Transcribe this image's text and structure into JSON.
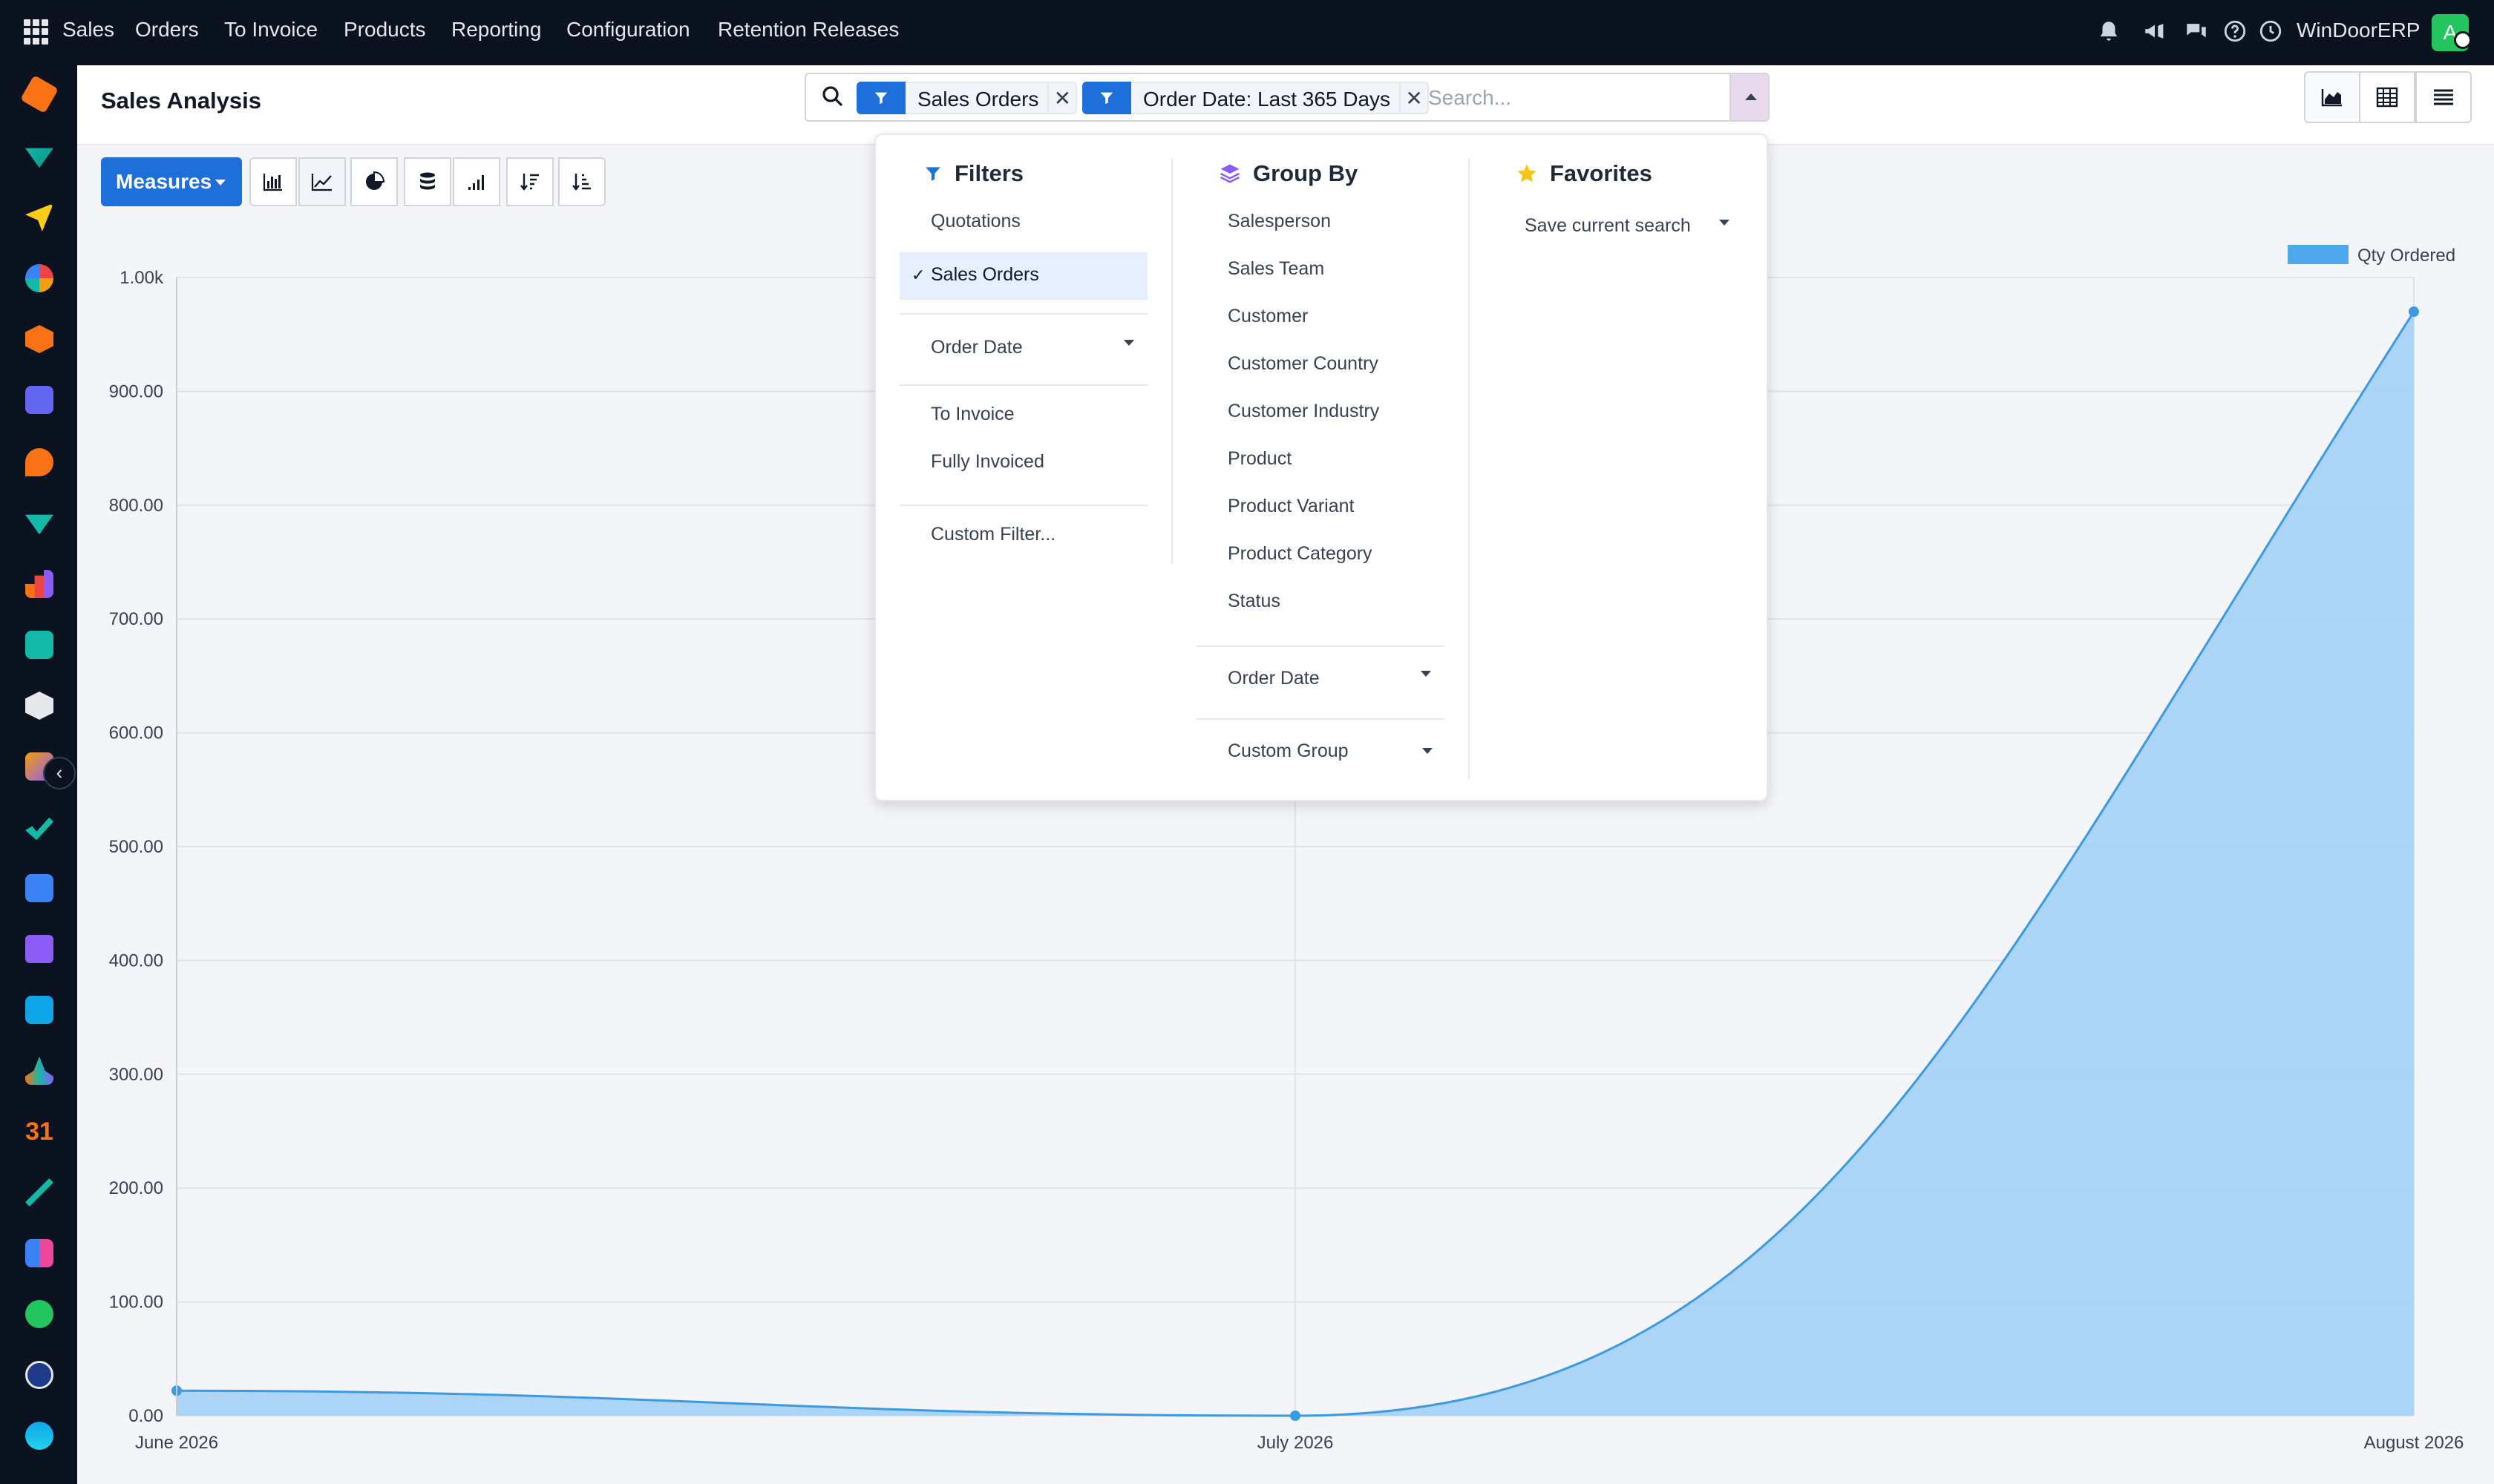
{
  "navbar": {
    "app_name": "Sales",
    "menu": [
      "Orders",
      "To Invoice",
      "Products",
      "Reporting",
      "Configuration",
      "Retention Releases"
    ],
    "company": "WinDoorERP",
    "avatar_initial": "A"
  },
  "control_panel": {
    "title": "Sales Analysis",
    "facets": [
      {
        "label": "Sales Orders"
      },
      {
        "label": "Order Date: Last 365 Days"
      }
    ],
    "search_placeholder": "Search...",
    "views": [
      "graph",
      "pivot",
      "list"
    ]
  },
  "toolbar": {
    "measures_label": "Measures",
    "tools": [
      "bar-chart",
      "line-chart",
      "pie-chart",
      "stacked",
      "cumulative",
      "sort-descending",
      "sort-ascending"
    ]
  },
  "dropdown": {
    "filters": {
      "title": "Filters",
      "items": [
        {
          "label": "Quotations",
          "selected": false
        },
        {
          "label": "Sales Orders",
          "selected": true
        },
        {
          "label": "Order Date",
          "has_caret": true
        },
        {
          "label": "To Invoice",
          "selected": false
        },
        {
          "label": "Fully Invoiced",
          "selected": false
        },
        {
          "label": "Custom Filter...",
          "selected": false
        }
      ]
    },
    "group_by": {
      "title": "Group By",
      "items": [
        "Salesperson",
        "Sales Team",
        "Customer",
        "Customer Country",
        "Customer Industry",
        "Product",
        "Product Variant",
        "Product Category",
        "Status"
      ],
      "order_date": "Order Date",
      "custom_group": "Custom Group"
    },
    "favorites": {
      "title": "Favorites",
      "save_current": "Save current search"
    }
  },
  "colors": {
    "navbar_bg": "#0b1220",
    "primary": "#1e6fd9",
    "series_fill": "#a8d2f5",
    "series_line": "#3b9ae1",
    "legend_swatch": "#4fa8ec"
  },
  "chart_data": {
    "type": "area",
    "x": [
      "June 2026",
      "July 2026",
      "August 2026"
    ],
    "series": [
      {
        "name": "Qty Ordered",
        "values": [
          22,
          0,
          970
        ]
      }
    ],
    "y_ticks": [
      "0.00",
      "100.00",
      "200.00",
      "300.00",
      "400.00",
      "500.00",
      "600.00",
      "700.00",
      "800.00",
      "900.00",
      "1.00k"
    ],
    "ylim": [
      0,
      1000
    ],
    "grid": true,
    "legend_position": "top-right"
  }
}
